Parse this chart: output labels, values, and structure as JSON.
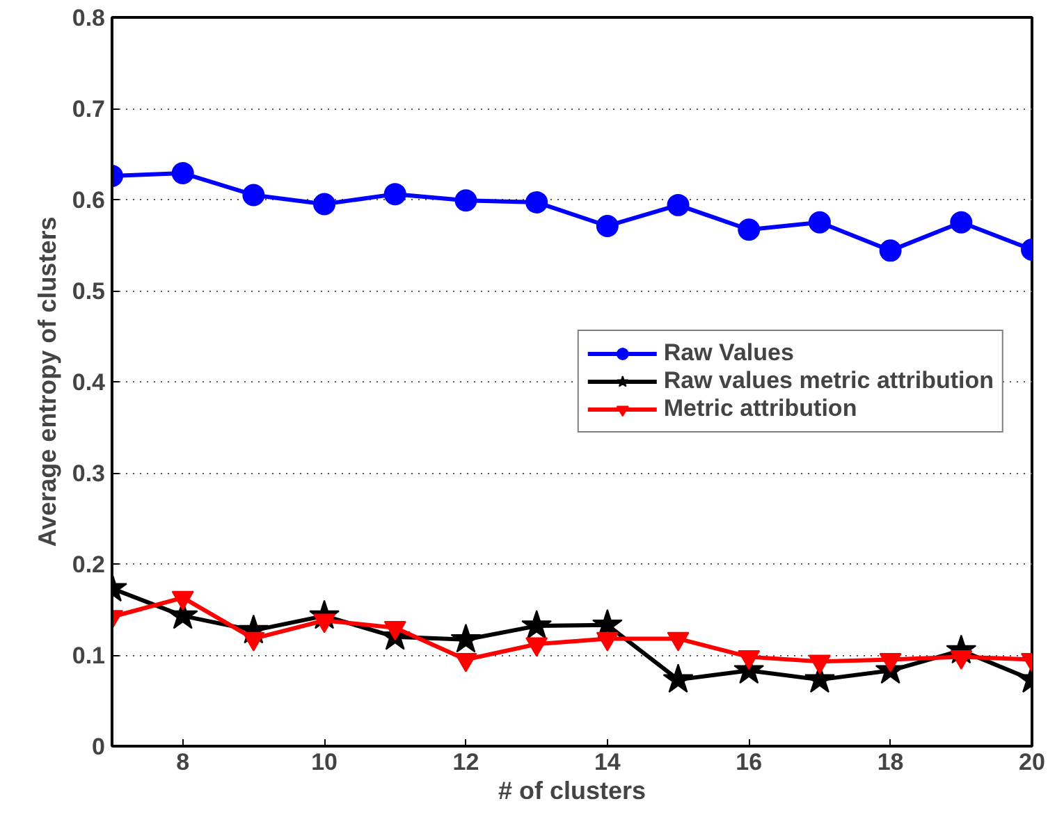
{
  "chart_data": {
    "type": "line",
    "xlabel": "# of clusters",
    "ylabel": "Average entropy of clusters",
    "x": [
      7,
      8,
      9,
      10,
      11,
      12,
      13,
      14,
      15,
      16,
      17,
      18,
      19,
      20
    ],
    "series": [
      {
        "name": "Raw Values",
        "color": "#0000ff",
        "marker": "circle",
        "values": [
          0.626,
          0.629,
          0.605,
          0.595,
          0.606,
          0.599,
          0.597,
          0.571,
          0.594,
          0.567,
          0.575,
          0.544,
          0.575,
          0.545
        ]
      },
      {
        "name": "Raw values metric attribution",
        "color": "#000000",
        "marker": "star",
        "values": [
          0.173,
          0.143,
          0.127,
          0.143,
          0.12,
          0.117,
          0.132,
          0.133,
          0.073,
          0.083,
          0.073,
          0.083,
          0.105,
          0.073
        ]
      },
      {
        "name": "Metric attribution",
        "color": "#ff0000",
        "marker": "triangle",
        "values": [
          0.142,
          0.163,
          0.118,
          0.138,
          0.13,
          0.095,
          0.112,
          0.118,
          0.118,
          0.098,
          0.093,
          0.095,
          0.098,
          0.095
        ]
      }
    ],
    "xlim": [
      7,
      20
    ],
    "xticks": [
      8,
      10,
      12,
      14,
      16,
      18,
      20
    ],
    "ylim": [
      0,
      0.8
    ],
    "yticks": [
      0,
      0.1,
      0.2,
      0.3,
      0.4,
      0.5,
      0.6,
      0.7,
      0.8
    ],
    "grid": "y",
    "legend": "right",
    "line_style": "solid"
  }
}
